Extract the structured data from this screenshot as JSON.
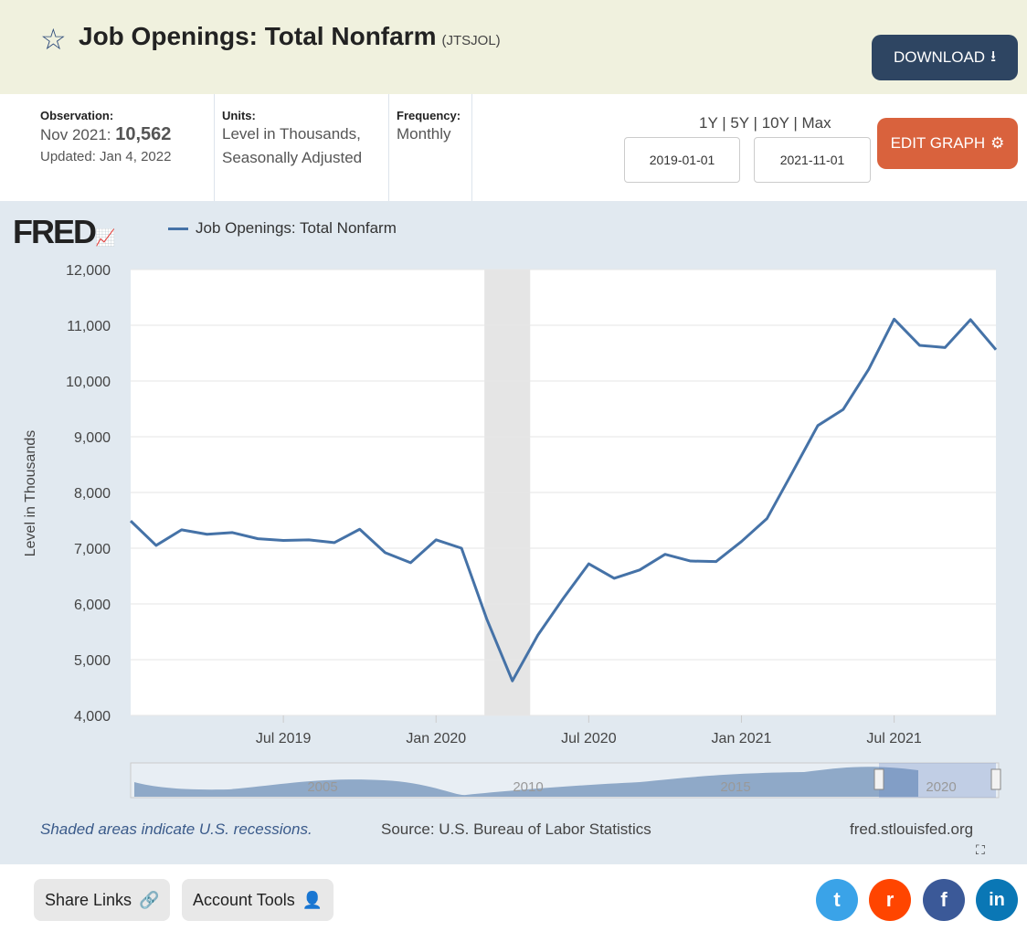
{
  "header": {
    "title": "Job Openings: Total Nonfarm",
    "code": "(JTSJOL)",
    "download_label": "DOWNLOAD",
    "edit_label": "EDIT GRAPH"
  },
  "info": {
    "obs_label": "Observation:",
    "obs_period": "Nov 2021:",
    "obs_value": "10,562",
    "updated": "Updated: Jan 4, 2022",
    "units_label": "Units:",
    "units_1": "Level in Thousands,",
    "units_2": "Seasonally Adjusted",
    "freq_label": "Frequency:",
    "freq_value": "Monthly"
  },
  "range": {
    "links": "1Y | 5Y | 10Y | Max",
    "start": "2019-01-01",
    "end": "2021-11-01"
  },
  "logo": "FRED",
  "footer": {
    "recession_note": "Shaded areas indicate U.S. recessions.",
    "source": "Source: U.S. Bureau of Labor Statistics",
    "site": "fred.stlouisfed.org",
    "share": "Share Links",
    "account": "Account Tools"
  },
  "colors": {
    "line": "#4572a7",
    "recession": "#e5e5e5"
  },
  "chart_data": {
    "type": "line",
    "title": "Job Openings: Total Nonfarm",
    "ylabel": "Level in Thousands",
    "ylim": [
      4000,
      12000
    ],
    "yticks": [
      "4,000",
      "5,000",
      "6,000",
      "7,000",
      "8,000",
      "9,000",
      "10,000",
      "11,000",
      "12,000"
    ],
    "xticks": [
      "Jul 2019",
      "Jan 2020",
      "Jul 2020",
      "Jan 2021",
      "Jul 2021"
    ],
    "xtick_month_index": [
      6,
      12,
      18,
      24,
      30
    ],
    "recession_month_index": [
      13.9,
      15.7
    ],
    "navigator_ticks": [
      "2005",
      "2010",
      "2015",
      "2020"
    ],
    "start": "2019-01",
    "series": [
      {
        "name": "Job Openings: Total Nonfarm",
        "values": [
          7490,
          7050,
          7330,
          7250,
          7280,
          7170,
          7140,
          7150,
          7100,
          7340,
          6920,
          6740,
          7150,
          7000,
          5720,
          4620,
          5440,
          6100,
          6720,
          6460,
          6610,
          6890,
          6770,
          6760,
          7120,
          7530,
          8360,
          9200,
          9490,
          10210,
          11110,
          10640,
          10600,
          11100,
          10562
        ]
      }
    ]
  }
}
